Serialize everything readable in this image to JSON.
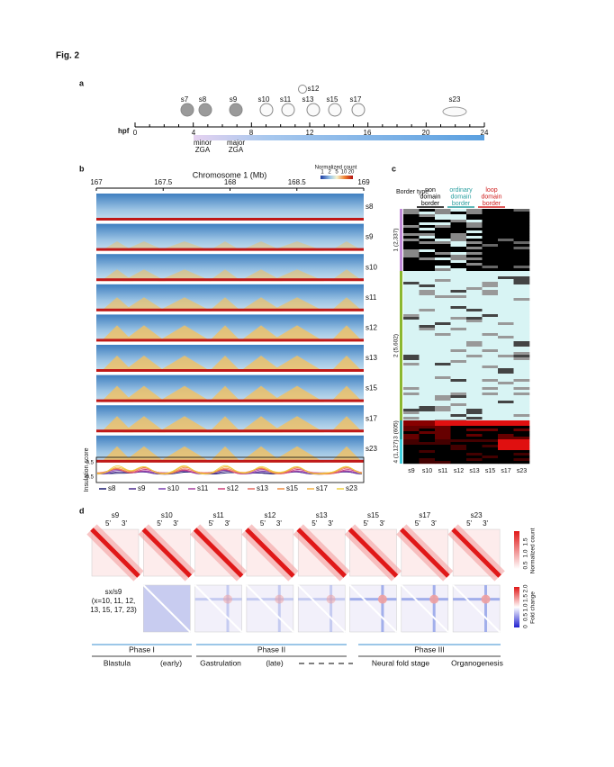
{
  "figure_label": "Fig. 2",
  "panel_a": {
    "label": "a",
    "stages": [
      "s7",
      "s8",
      "s9",
      "s10",
      "s11",
      "s12",
      "s13",
      "s15",
      "s17",
      "s23"
    ],
    "axis_label": "hpf",
    "ticks": [
      0,
      4,
      8,
      12,
      16,
      20,
      24
    ],
    "zga": [
      {
        "line1": "minor",
        "line2": "ZGA"
      },
      {
        "line1": "major",
        "line2": "ZGA"
      }
    ]
  },
  "panel_b": {
    "label": "b",
    "title": "Chromosome 1 (Mb)",
    "ticks": [
      167,
      167.5,
      168,
      168.5,
      169
    ],
    "colorbar_title": "Normalized count",
    "colorbar_ticks": [
      1,
      2,
      5,
      10,
      20
    ],
    "stages": [
      "s8",
      "s9",
      "s10",
      "s11",
      "s12",
      "s13",
      "s15",
      "s17",
      "s23"
    ],
    "insulation_label": "Insulation score",
    "insulation_ticks": [
      0.5,
      -0.5
    ],
    "legend": [
      {
        "name": "s8",
        "color": "#1a1a6e"
      },
      {
        "name": "s9",
        "color": "#4b2a8c"
      },
      {
        "name": "s10",
        "color": "#7b3fb0"
      },
      {
        "name": "s11",
        "color": "#a83fa0"
      },
      {
        "name": "s12",
        "color": "#d0407a"
      },
      {
        "name": "s13",
        "color": "#e86a60"
      },
      {
        "name": "s15",
        "color": "#f08c40"
      },
      {
        "name": "s17",
        "color": "#f4b040"
      },
      {
        "name": "s23",
        "color": "#f0d040"
      }
    ]
  },
  "panel_c": {
    "label": "c",
    "border_type": "Border type",
    "columns": [
      {
        "lines": [
          "non",
          "domain",
          "border"
        ],
        "color": "#000000"
      },
      {
        "lines": [
          "ordinary",
          "domain",
          "border"
        ],
        "color": "#2a9fa0"
      },
      {
        "lines": [
          "loop",
          "domain",
          "border"
        ],
        "color": "#d02020"
      }
    ],
    "groups": [
      "1 (2,337)",
      "2 (5,602)",
      "3 (605)",
      "4 (1,127)"
    ],
    "stages": [
      "s9",
      "s10",
      "s11",
      "s12",
      "s13",
      "s15",
      "s17",
      "s23"
    ]
  },
  "panel_d": {
    "label": "d",
    "stages": [
      "s9",
      "s10",
      "s11",
      "s12",
      "s13",
      "s15",
      "s17",
      "s23"
    ],
    "ends": [
      "5'",
      "3'"
    ],
    "colorbar1": {
      "title": "Normalized count",
      "ticks": [
        "0.5",
        "1.0",
        "1.5"
      ]
    },
    "colorbar2": {
      "title": "Fold change",
      "ticks": [
        "0",
        "0.5",
        "1.0",
        "1.5",
        "2.0"
      ]
    },
    "row_label": [
      "sx/s9",
      "(x=10, 11, 12,",
      "13, 15, 17, 23)"
    ],
    "phases": [
      "Phase I",
      "Phase II",
      "Phase III"
    ],
    "periods": [
      "Blastula",
      "(early)",
      "Gastrulation",
      "(late)",
      "Neural fold stage",
      "Organogenesis"
    ]
  }
}
